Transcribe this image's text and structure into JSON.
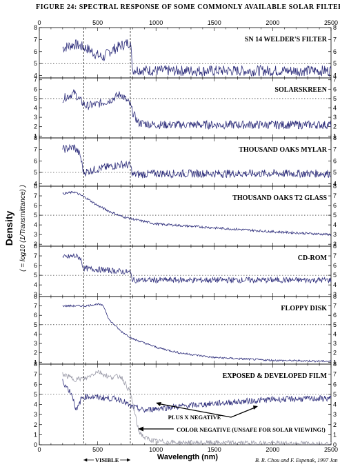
{
  "chart_data": {
    "type": "line",
    "title": "Figure 24: Spectral Response of Some Commonly Available Solar Filters",
    "title_display": "FIGURE 24: SPECTRAL RESPONSE OF SOME COMMONLY AVAILABLE SOLAR FILTERS",
    "xlabel": "Wavelength (nm)",
    "ylabel": "Density",
    "ylabel_sub": "( = log10 (1/Transmittance) )",
    "xlim": [
      0,
      2500
    ],
    "x_ticks": [
      0,
      500,
      1000,
      1500,
      2000,
      2500
    ],
    "visible_band": {
      "label": "Visible",
      "range": [
        380,
        780
      ]
    },
    "credit": "B. R. Chou and F. Espenak, 1997 Jan",
    "panels": [
      {
        "name": "SN 14 Welder's Filter",
        "label": "SN 14 WELDER'S FILTER",
        "ylim": [
          3.8,
          8
        ],
        "y_ticks": [
          4,
          5,
          6,
          7,
          8
        ],
        "reference": 5,
        "x": [
          200,
          300,
          400,
          500,
          550,
          600,
          700,
          780,
          800,
          1000,
          1500,
          2000,
          2500
        ],
        "y": [
          6.3,
          6.6,
          6.3,
          5.7,
          5.5,
          6.0,
          6.5,
          6.8,
          4.5,
          4.4,
          4.4,
          4.4,
          4.4
        ],
        "noise": 0.45
      },
      {
        "name": "SolarSkreen",
        "label": "SOLARSKREEN",
        "ylim": [
          0.8,
          7.2
        ],
        "y_ticks": [
          1,
          2,
          3,
          4,
          5,
          6,
          7
        ],
        "reference": 5,
        "x": [
          200,
          300,
          350,
          400,
          500,
          600,
          700,
          780,
          800,
          850,
          1000,
          1500,
          2000,
          2500
        ],
        "y": [
          5.0,
          5.6,
          4.8,
          4.2,
          4.4,
          4.8,
          5.5,
          4.3,
          3.5,
          2.4,
          2.2,
          2.2,
          2.2,
          2.2
        ],
        "noise": 0.45
      },
      {
        "name": "Thousand Oaks Mylar",
        "label": "THOUSAND OAKS MYLAR",
        "ylim": [
          3.8,
          8
        ],
        "y_ticks": [
          4,
          5,
          6,
          7,
          8
        ],
        "reference": 5,
        "x": [
          200,
          300,
          350,
          380,
          500,
          600,
          700,
          780,
          800,
          1000,
          1500,
          2000,
          2500
        ],
        "y": [
          7.0,
          7.2,
          6.5,
          5.0,
          5.3,
          5.5,
          5.7,
          5.6,
          4.8,
          4.9,
          4.9,
          4.9,
          4.9
        ],
        "noise": 0.35
      },
      {
        "name": "Thousand Oaks T2 Glass",
        "label": "THOUSAND OAKS T2 GLASS",
        "ylim": [
          1.8,
          8
        ],
        "y_ticks": [
          2,
          3,
          4,
          5,
          6,
          7,
          8
        ],
        "reference": 5,
        "x": [
          200,
          300,
          400,
          500,
          600,
          700,
          800,
          1000,
          1500,
          2000,
          2500
        ],
        "y": [
          7.2,
          7.4,
          6.8,
          6.0,
          5.4,
          4.9,
          4.6,
          4.1,
          3.7,
          3.3,
          3.0
        ],
        "noise": 0.12
      },
      {
        "name": "CD-ROM",
        "label": "CD-ROM",
        "ylim": [
          2.8,
          8
        ],
        "y_ticks": [
          3,
          4,
          5,
          6,
          7,
          8
        ],
        "reference": 5,
        "x": [
          200,
          300,
          350,
          380,
          500,
          600,
          700,
          780,
          800,
          1000,
          1500,
          2000,
          2500
        ],
        "y": [
          6.8,
          7.0,
          6.8,
          5.7,
          5.6,
          5.5,
          5.4,
          5.3,
          4.5,
          4.5,
          4.5,
          4.5,
          4.5
        ],
        "noise": 0.3
      },
      {
        "name": "Floppy Disk",
        "label": "FLOPPY DISK",
        "ylim": [
          0.8,
          8
        ],
        "y_ticks": [
          1,
          2,
          3,
          4,
          5,
          6,
          7,
          8
        ],
        "reference": 5,
        "x": [
          200,
          300,
          400,
          500,
          550,
          600,
          700,
          800,
          1000,
          1200,
          1500,
          2000,
          2500
        ],
        "y": [
          7.0,
          7.0,
          7.0,
          7.2,
          7.0,
          5.5,
          4.3,
          3.5,
          2.6,
          2.0,
          1.5,
          1.2,
          1.1
        ],
        "noise": 0.1
      },
      {
        "name": "Exposed & Developed Film",
        "label": "EXPOSED & DEVELOPED FILM",
        "ylim": [
          0,
          8
        ],
        "y_ticks": [
          0,
          1,
          2,
          3,
          4,
          5,
          6,
          7,
          8
        ],
        "reference": 5,
        "series": [
          {
            "name": "Plus X Negative",
            "label": "PLUS X NEGATIVE",
            "x": [
              200,
              280,
              320,
              360,
              400,
              500,
              600,
              700,
              780,
              900,
              1000,
              1500,
              2000,
              2500
            ],
            "y": [
              6.3,
              5.0,
              3.3,
              4.6,
              4.8,
              4.7,
              4.6,
              4.5,
              3.8,
              3.4,
              3.6,
              4.1,
              4.5,
              4.6
            ],
            "noise": 0.3,
            "color": "#2c2c7a"
          },
          {
            "name": "Color Negative (Unsafe for Solar Viewing!)",
            "label": "COLOR NEGATIVE (UNSAFE FOR SOLAR VIEWING!)",
            "x": [
              200,
              300,
              400,
              500,
              600,
              700,
              780,
              850,
              900,
              1000,
              1200,
              1500,
              2000,
              2500
            ],
            "y": [
              7.0,
              6.5,
              6.6,
              7.3,
              6.7,
              6.8,
              5.2,
              1.4,
              0.7,
              0.35,
              0.2,
              0.2,
              0.15,
              0.1
            ],
            "noise": 0.25,
            "color": "#9a9aa8"
          }
        ]
      }
    ]
  },
  "colors": {
    "trace": "#2c2c7a",
    "trace_light": "#9a9aa8",
    "axis": "#000000"
  }
}
